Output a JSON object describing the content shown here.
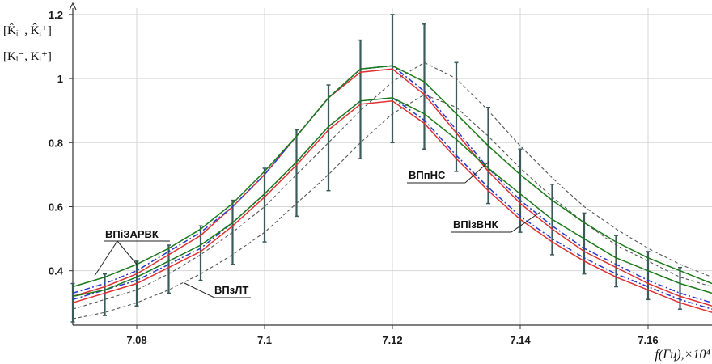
{
  "chart_data": {
    "type": "line",
    "xlabel": "f(Гц),×10⁴",
    "ylabel_line1": "[K̂ᵢ⁻, K̂ᵢ⁺]",
    "ylabel_line2": "[Kᵢ⁻, Kᵢ⁺]",
    "xlim": [
      7.07,
      7.17
    ],
    "ylim": [
      0.23,
      1.22
    ],
    "x_ticks": [
      "7.08",
      "7.1",
      "7.12",
      "7.14",
      "7.16"
    ],
    "y_ticks": [
      "0.4",
      "0.6",
      "0.8",
      "1",
      "1.2"
    ],
    "grid": true,
    "x": [
      7.07,
      7.075,
      7.08,
      7.085,
      7.09,
      7.095,
      7.1,
      7.105,
      7.11,
      7.115,
      7.12,
      7.125,
      7.13,
      7.135,
      7.14,
      7.145,
      7.15,
      7.155,
      7.16,
      7.165,
      7.17
    ],
    "series": [
      {
        "key": "g_up",
        "color": "#1a7a1a",
        "dash": "",
        "values": [
          0.35,
          0.38,
          0.42,
          0.47,
          0.53,
          0.61,
          0.71,
          0.82,
          0.94,
          1.03,
          1.04,
          0.99,
          0.89,
          0.79,
          0.7,
          0.62,
          0.55,
          0.49,
          0.44,
          0.4,
          0.36
        ]
      },
      {
        "key": "g_lo",
        "color": "#1a7a1a",
        "dash": "",
        "values": [
          0.32,
          0.34,
          0.38,
          0.43,
          0.48,
          0.55,
          0.64,
          0.74,
          0.85,
          0.93,
          0.94,
          0.89,
          0.81,
          0.72,
          0.64,
          0.56,
          0.5,
          0.44,
          0.4,
          0.36,
          0.33
        ]
      },
      {
        "key": "b_up",
        "color": "#2a3acc",
        "dash": "7,3,2,3",
        "values": [
          0.33,
          0.36,
          0.4,
          0.46,
          0.52,
          0.6,
          0.7,
          0.82,
          0.94,
          1.03,
          1.04,
          0.96,
          0.84,
          0.72,
          0.62,
          0.54,
          0.47,
          0.42,
          0.37,
          0.33,
          0.3
        ]
      },
      {
        "key": "b_lo",
        "color": "#2a3acc",
        "dash": "7,3,2,3",
        "values": [
          0.31,
          0.34,
          0.37,
          0.42,
          0.47,
          0.55,
          0.64,
          0.74,
          0.85,
          0.93,
          0.94,
          0.87,
          0.76,
          0.66,
          0.57,
          0.5,
          0.44,
          0.39,
          0.35,
          0.31,
          0.28
        ]
      },
      {
        "key": "r_up",
        "color": "#e03030",
        "dash": "",
        "values": [
          0.32,
          0.35,
          0.39,
          0.45,
          0.51,
          0.6,
          0.7,
          0.82,
          0.94,
          1.02,
          1.03,
          0.95,
          0.83,
          0.71,
          0.61,
          0.53,
          0.46,
          0.41,
          0.36,
          0.32,
          0.29
        ]
      },
      {
        "key": "r_lo",
        "color": "#e03030",
        "dash": "",
        "values": [
          0.3,
          0.33,
          0.36,
          0.41,
          0.46,
          0.54,
          0.63,
          0.73,
          0.84,
          0.92,
          0.93,
          0.86,
          0.75,
          0.65,
          0.56,
          0.49,
          0.43,
          0.38,
          0.34,
          0.3,
          0.27
        ]
      },
      {
        "key": "k_up",
        "color": "#555555",
        "dash": "4,3",
        "values": [
          0.28,
          0.31,
          0.34,
          0.39,
          0.45,
          0.52,
          0.6,
          0.7,
          0.8,
          0.9,
          0.99,
          1.05,
          1.0,
          0.9,
          0.79,
          0.69,
          0.6,
          0.53,
          0.47,
          0.42,
          0.38
        ]
      },
      {
        "key": "k_lo",
        "color": "#555555",
        "dash": "4,3",
        "values": [
          0.25,
          0.27,
          0.3,
          0.34,
          0.39,
          0.45,
          0.52,
          0.61,
          0.7,
          0.8,
          0.89,
          0.95,
          0.91,
          0.82,
          0.72,
          0.63,
          0.55,
          0.48,
          0.43,
          0.38,
          0.35
        ]
      }
    ],
    "error_bars": {
      "color": "#3b5a5a",
      "x": [
        7.07,
        7.075,
        7.08,
        7.085,
        7.09,
        7.095,
        7.1,
        7.105,
        7.11,
        7.115,
        7.12,
        7.125,
        7.13,
        7.135,
        7.14,
        7.145,
        7.15,
        7.155,
        7.16,
        7.165
      ],
      "lo": [
        0.24,
        0.26,
        0.29,
        0.33,
        0.37,
        0.42,
        0.49,
        0.57,
        0.65,
        0.75,
        0.8,
        0.78,
        0.71,
        0.61,
        0.52,
        0.45,
        0.39,
        0.35,
        0.31,
        0.28
      ],
      "hi": [
        0.36,
        0.39,
        0.43,
        0.48,
        0.54,
        0.62,
        0.72,
        0.84,
        0.98,
        1.12,
        1.2,
        1.17,
        1.05,
        0.91,
        0.78,
        0.67,
        0.58,
        0.51,
        0.46,
        0.41
      ]
    },
    "annotations": [
      {
        "key": "apvk",
        "text": "ВПіЗАРВК"
      },
      {
        "key": "zlt",
        "text": "ВПзЛТ"
      },
      {
        "key": "pns",
        "text": "ВПпНС"
      },
      {
        "key": "vnk",
        "text": "ВПізВНК"
      }
    ]
  }
}
